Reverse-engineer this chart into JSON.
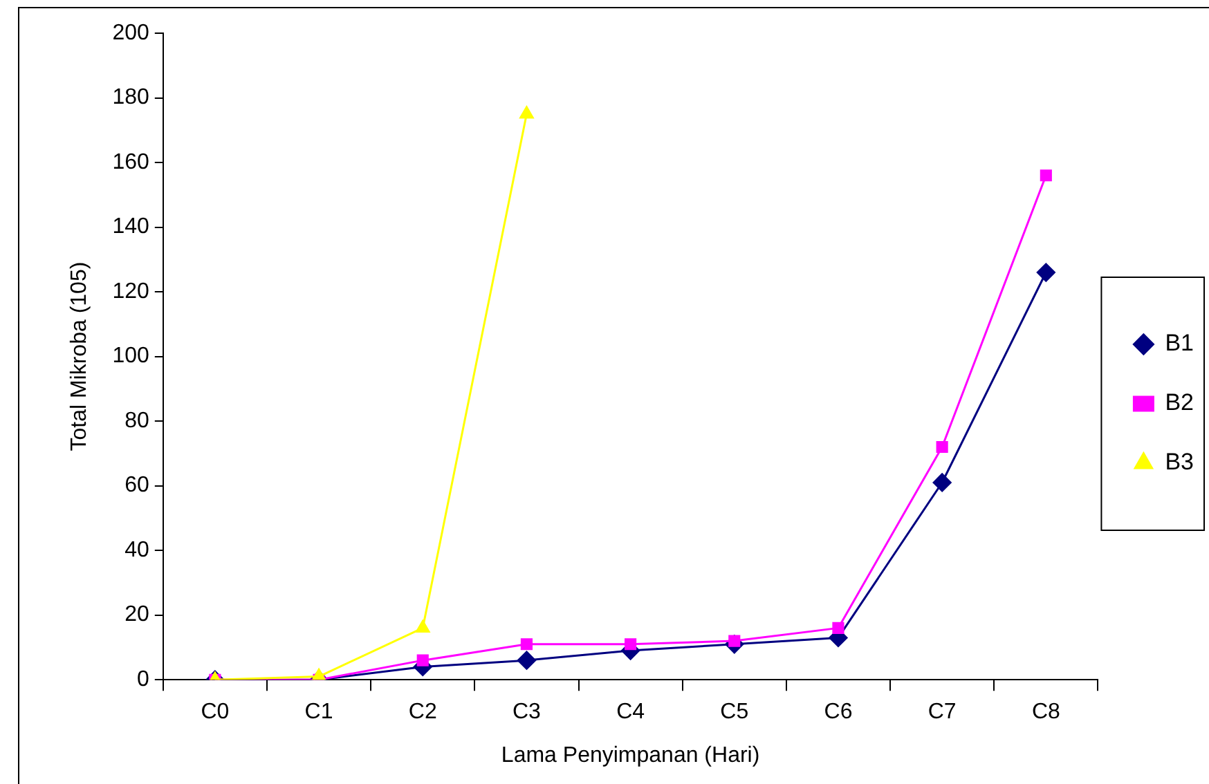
{
  "chart_data": {
    "type": "line",
    "xlabel": "Lama Penyimpanan (Hari)",
    "ylabel": "Total Mikroba (105)",
    "categories": [
      "C0",
      "C1",
      "C2",
      "C3",
      "C4",
      "C5",
      "C6",
      "C7",
      "C8"
    ],
    "ylim": [
      0,
      200
    ],
    "yticks": [
      0,
      20,
      40,
      60,
      80,
      100,
      120,
      140,
      160,
      180,
      200
    ],
    "grid": false,
    "legend": "right",
    "line_style": "solid",
    "series": [
      {
        "name": "B1",
        "color": "#000080",
        "marker": "diamond",
        "values": [
          0,
          0,
          4,
          6,
          9,
          11,
          13,
          61,
          126
        ]
      },
      {
        "name": "B2",
        "color": "#ff00ff",
        "marker": "square",
        "values": [
          0,
          0,
          6,
          11,
          11,
          12,
          16,
          72,
          156
        ]
      },
      {
        "name": "B3",
        "color": "#ffff00",
        "marker": "triangle",
        "values": [
          0,
          1,
          16,
          175,
          null,
          null,
          null,
          null,
          null
        ]
      }
    ]
  }
}
